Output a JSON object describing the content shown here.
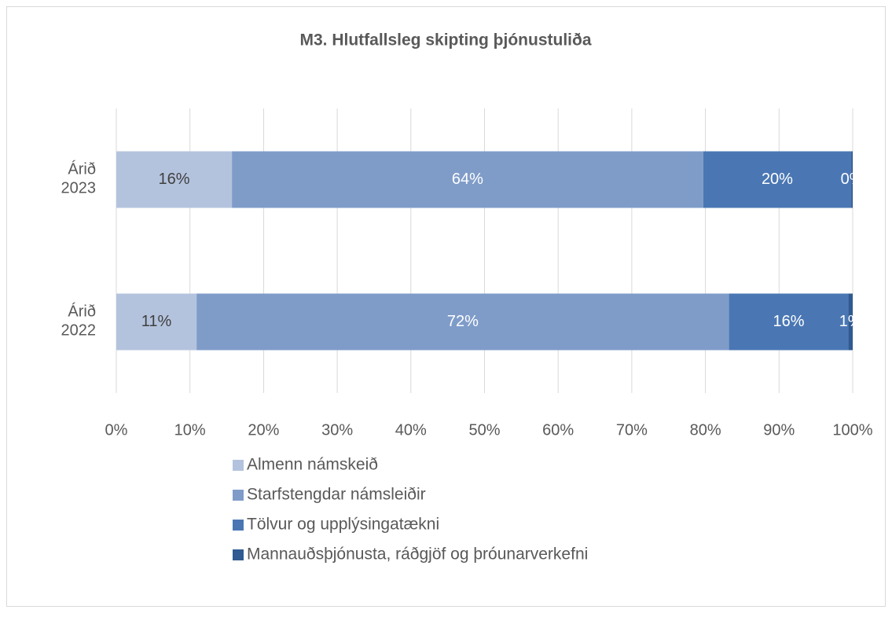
{
  "chart_data": {
    "type": "stacked-barh",
    "title": "M3. Hlutfallsleg skipting þjónustuliða",
    "categories": [
      "Árið 2023",
      "Árið 2022"
    ],
    "series": [
      {
        "name": "Almenn námskeið",
        "color": "#b4c3dd",
        "values": [
          15.7,
          10.9
        ],
        "value_labels": [
          "16%",
          "11%"
        ]
      },
      {
        "name": "Starfstengdar námsleiðir",
        "color": "#7f9cc9",
        "values": [
          64.0,
          72.3
        ],
        "value_labels": [
          "64%",
          "72%"
        ]
      },
      {
        "name": "Tölvur og upplýsingatækni",
        "color": "#4a77b4",
        "values": [
          20.1,
          16.2
        ],
        "value_labels": [
          "20%",
          "16%"
        ]
      },
      {
        "name": "Mannauðsþjónusta, ráðgjöf og þróunarverkefni",
        "color": "#2f5a92",
        "values": [
          0.2,
          0.6
        ],
        "value_labels": [
          "0%",
          "1%"
        ]
      }
    ],
    "xlim": [
      0,
      100
    ],
    "xticks": [
      {
        "value": 0,
        "label": "0%"
      },
      {
        "value": 10,
        "label": "10%"
      },
      {
        "value": 20,
        "label": "20%"
      },
      {
        "value": 30,
        "label": "30%"
      },
      {
        "value": 40,
        "label": "40%"
      },
      {
        "value": 50,
        "label": "50%"
      },
      {
        "value": 60,
        "label": "60%"
      },
      {
        "value": 70,
        "label": "70%"
      },
      {
        "value": 80,
        "label": "80%"
      },
      {
        "value": 90,
        "label": "90%"
      },
      {
        "value": 100,
        "label": "100%"
      }
    ],
    "grid": true,
    "legend": "bottom"
  }
}
